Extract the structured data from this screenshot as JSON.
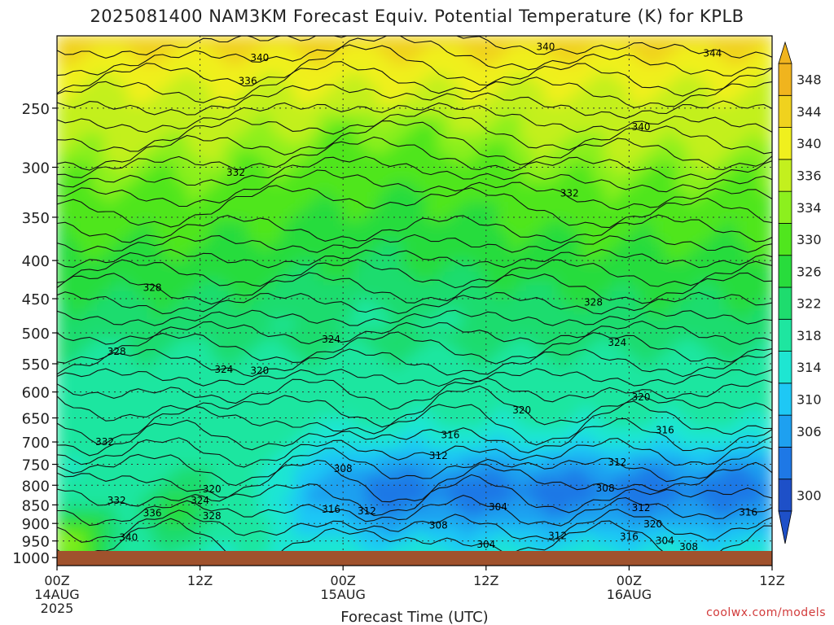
{
  "chart_data": {
    "type": "heatmap",
    "title": "2025081400 NAM3KM Forecast Equiv. Potential Temperature (K) for KPLB",
    "xlabel": "Forecast Time (UTC)",
    "ylabel": "",
    "x_ticks": [
      {
        "hour": 0,
        "lines": [
          "00Z",
          "14AUG",
          "2025"
        ]
      },
      {
        "hour": 12,
        "lines": [
          "12Z"
        ]
      },
      {
        "hour": 24,
        "lines": [
          "00Z",
          "15AUG"
        ]
      },
      {
        "hour": 36,
        "lines": [
          "12Z"
        ]
      },
      {
        "hour": 48,
        "lines": [
          "00Z",
          "16AUG"
        ]
      },
      {
        "hour": 60,
        "lines": [
          "12Z"
        ]
      }
    ],
    "xlim": [
      0,
      60
    ],
    "y_ticks": [
      250,
      300,
      350,
      400,
      450,
      500,
      550,
      600,
      650,
      700,
      750,
      800,
      850,
      900,
      950,
      1000
    ],
    "ylim": [
      1000,
      200
    ],
    "y_scale": "log-pressure",
    "grid": true,
    "colorbar": {
      "levels": [
        300,
        302,
        306,
        310,
        314,
        318,
        322,
        326,
        330,
        334,
        336,
        340,
        344,
        348
      ],
      "colors": [
        "#1e50c8",
        "#1e78e6",
        "#1ea0f0",
        "#1ec8f5",
        "#1ee6d2",
        "#1ee6a0",
        "#1edc6e",
        "#28dc3c",
        "#50e61e",
        "#8cf01e",
        "#c3f01e",
        "#f0f01e",
        "#f0d21e",
        "#f0b41e"
      ],
      "labels": [
        300,
        306,
        310,
        314,
        318,
        322,
        326,
        330,
        334,
        336,
        340,
        344,
        348
      ],
      "extend": "both"
    },
    "contour_labels": [
      {
        "text": "340",
        "hour": 41,
        "p": 207
      },
      {
        "text": "344",
        "hour": 55,
        "p": 211
      },
      {
        "text": "340",
        "hour": 17,
        "p": 214
      },
      {
        "text": "336",
        "hour": 16,
        "p": 230
      },
      {
        "text": "340",
        "hour": 49,
        "p": 265
      },
      {
        "text": "332",
        "hour": 15,
        "p": 305
      },
      {
        "text": "332",
        "hour": 43,
        "p": 325
      },
      {
        "text": "328",
        "hour": 8,
        "p": 435
      },
      {
        "text": "328",
        "hour": 45,
        "p": 455
      },
      {
        "text": "324",
        "hour": 23,
        "p": 510
      },
      {
        "text": "324",
        "hour": 47,
        "p": 515
      },
      {
        "text": "328",
        "hour": 5,
        "p": 530
      },
      {
        "text": "324",
        "hour": 14,
        "p": 560
      },
      {
        "text": "320",
        "hour": 17,
        "p": 562
      },
      {
        "text": "320",
        "hour": 39,
        "p": 635
      },
      {
        "text": "320",
        "hour": 49,
        "p": 610
      },
      {
        "text": "316",
        "hour": 33,
        "p": 685
      },
      {
        "text": "316",
        "hour": 51,
        "p": 675
      },
      {
        "text": "312",
        "hour": 32,
        "p": 730
      },
      {
        "text": "312",
        "hour": 47,
        "p": 745
      },
      {
        "text": "332",
        "hour": 4,
        "p": 700
      },
      {
        "text": "308",
        "hour": 24,
        "p": 760
      },
      {
        "text": "308",
        "hour": 46,
        "p": 808
      },
      {
        "text": "320",
        "hour": 13,
        "p": 810
      },
      {
        "text": "324",
        "hour": 12,
        "p": 838
      },
      {
        "text": "332",
        "hour": 5,
        "p": 838
      },
      {
        "text": "304",
        "hour": 37,
        "p": 856
      },
      {
        "text": "316",
        "hour": 23,
        "p": 862
      },
      {
        "text": "312",
        "hour": 26,
        "p": 866
      },
      {
        "text": "312",
        "hour": 49,
        "p": 858
      },
      {
        "text": "316",
        "hour": 58,
        "p": 870
      },
      {
        "text": "328",
        "hour": 13,
        "p": 880
      },
      {
        "text": "336",
        "hour": 8,
        "p": 872
      },
      {
        "text": "308",
        "hour": 32,
        "p": 905
      },
      {
        "text": "320",
        "hour": 50,
        "p": 902
      },
      {
        "text": "340",
        "hour": 6,
        "p": 940
      },
      {
        "text": "312",
        "hour": 42,
        "p": 935
      },
      {
        "text": "316",
        "hour": 48,
        "p": 938
      },
      {
        "text": "304",
        "hour": 51,
        "p": 950
      },
      {
        "text": "304",
        "hour": 36,
        "p": 960
      },
      {
        "text": "308",
        "hour": 53,
        "p": 968
      }
    ]
  },
  "credit": "coolwx.com/models"
}
